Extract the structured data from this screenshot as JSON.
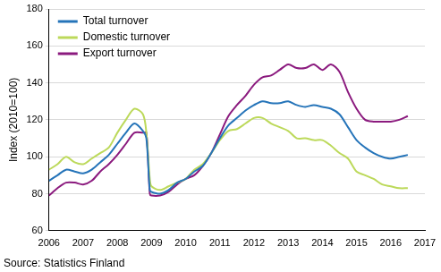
{
  "chart_data": {
    "type": "line",
    "y_label": "Index (2010=100)",
    "annotations": [
      "Source: Statistics Finland"
    ],
    "legend": "upper left",
    "grid": "y",
    "xlim": [
      2006,
      2017
    ],
    "xticks": [
      2006,
      2007,
      2008,
      2009,
      2010,
      2011,
      2012,
      2013,
      2014,
      2015,
      2016,
      2017
    ],
    "ylim": [
      60,
      180
    ],
    "yticks": [
      60,
      80,
      100,
      120,
      140,
      160,
      180
    ],
    "x": [
      2006.0,
      2006.25,
      2006.5,
      2006.75,
      2007.0,
      2007.25,
      2007.5,
      2007.75,
      2008.0,
      2008.25,
      2008.5,
      2008.75,
      2008.85,
      2008.95,
      2009.0,
      2009.25,
      2009.5,
      2009.75,
      2010.0,
      2010.25,
      2010.5,
      2010.75,
      2011.0,
      2011.25,
      2011.5,
      2011.75,
      2012.0,
      2012.25,
      2012.5,
      2012.75,
      2013.0,
      2013.25,
      2013.5,
      2013.75,
      2014.0,
      2014.25,
      2014.5,
      2014.75,
      2015.0,
      2015.25,
      2015.5,
      2015.75,
      2016.0,
      2016.25,
      2016.5
    ],
    "series": [
      {
        "name": "Total turnover",
        "color": "#2574b9",
        "values": [
          87,
          90,
          93,
          92,
          91,
          93,
          97,
          101,
          107,
          113,
          118,
          114,
          110,
          82,
          81,
          80,
          82,
          86,
          88,
          92,
          95,
          102,
          110,
          117,
          121,
          125,
          128,
          130,
          129,
          129,
          130,
          128,
          127,
          128,
          127,
          126,
          123,
          116,
          109,
          105,
          102,
          100,
          99,
          100,
          101
        ]
      },
      {
        "name": "Domestic turnover",
        "color": "#bcd95a",
        "values": [
          93,
          96,
          100,
          97,
          96,
          99,
          102,
          105,
          113,
          120,
          126,
          123,
          113,
          88,
          84,
          82,
          84,
          86,
          88,
          93,
          96,
          102,
          109,
          114,
          115,
          118,
          121,
          121,
          118,
          116,
          114,
          110,
          110,
          109,
          109,
          106,
          102,
          99,
          92,
          90,
          88,
          85,
          84,
          83,
          83
        ]
      },
      {
        "name": "Export turnover",
        "color": "#8b1a7e",
        "values": [
          79,
          83,
          86,
          86,
          85,
          87,
          92,
          96,
          101,
          107,
          113,
          113,
          113,
          80,
          79,
          79,
          81,
          85,
          88,
          90,
          95,
          102,
          112,
          122,
          128,
          133,
          139,
          143,
          144,
          147,
          150,
          148,
          148,
          150,
          147,
          150,
          146,
          135,
          126,
          120,
          119,
          119,
          119,
          120,
          122
        ]
      }
    ]
  }
}
